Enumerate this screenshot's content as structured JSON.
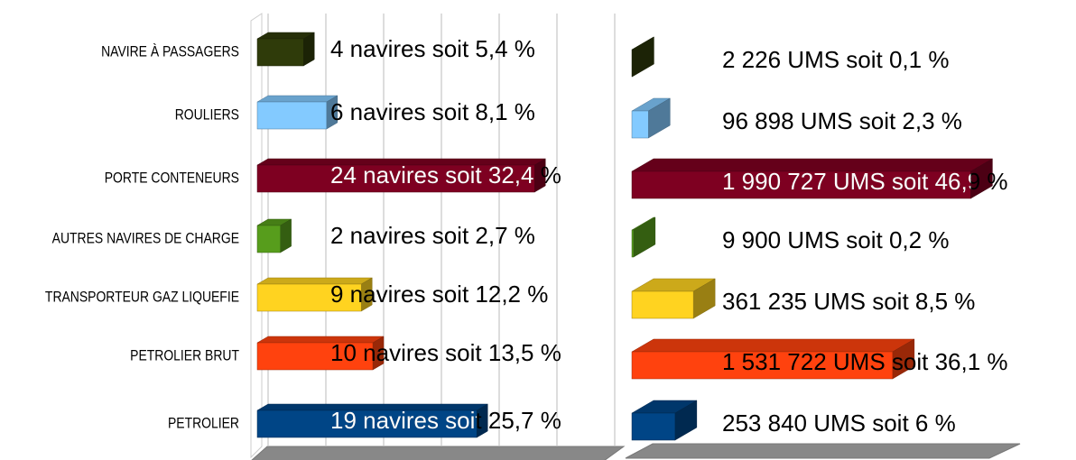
{
  "chart_data": [
    {
      "type": "bar3d",
      "orientation": "horizontal",
      "categories": [
        "NAVIRE À PASSAGERS",
        "ROULIERS",
        "PORTE CONTENEURS",
        "AUTRES NAVIRES DE CHARGE",
        "TRANSPORTEUR GAZ LIQUEFIE",
        "PETROLIER BRUT",
        "PETROLIER"
      ],
      "values": [
        4,
        6,
        24,
        2,
        9,
        10,
        19
      ],
      "value_labels": [
        "4 navires soit 5,4 %",
        "6 navires soit 8,1 %",
        "24 navires soit 32,4 %",
        "2 navires soit 2,7 %",
        "9 navires soit 12,2 %",
        "10 navires soit 13,5 %",
        "19 navires soit 25,7 %"
      ],
      "colors": [
        "#2f3b0a",
        "#83caff",
        "#7e0021",
        "#579d1c",
        "#ffd320",
        "#ff420e",
        "#004586"
      ],
      "xlim": [
        0,
        30
      ],
      "xticks": [
        0,
        5,
        10,
        15,
        20,
        25,
        30
      ],
      "grid": true
    },
    {
      "type": "bar3d",
      "orientation": "horizontal",
      "values": [
        2226,
        96898,
        1990727,
        9900,
        361235,
        1531722,
        253840
      ],
      "value_labels": [
        "2 226 UMS soit 0,1 %",
        "96 898 UMS soit 2,3 %",
        "1 990 727 UMS soit 46,9 %",
        "9 900 UMS soit 0,2 %",
        "361 235 UMS soit 8,5 %",
        "1 531 722 UMS soit 36,1 %",
        "253 840 UMS soit 6 %"
      ],
      "colors": [
        "#2f3b0a",
        "#83caff",
        "#7e0021",
        "#579d1c",
        "#ffd320",
        "#ff420e",
        "#004586"
      ],
      "xlim": [
        0,
        2100000
      ]
    }
  ]
}
